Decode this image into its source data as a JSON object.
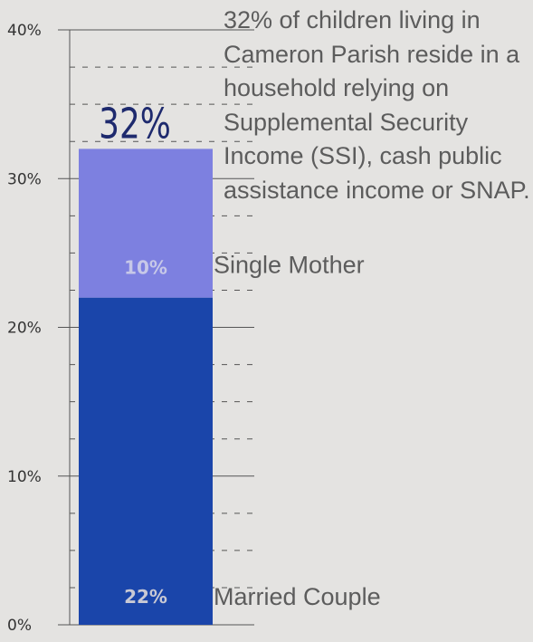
{
  "chart_data": {
    "type": "bar",
    "stacked": true,
    "categories": [
      ""
    ],
    "series": [
      {
        "name": "Married Couple",
        "values": [
          22
        ],
        "label": "22%",
        "color": "#1a45aa",
        "label_color": "#c9c9d4"
      },
      {
        "name": "Single Mother",
        "values": [
          10
        ],
        "label": "10%",
        "color": "#7d80e0",
        "label_color": "#c7c8e8"
      }
    ],
    "total_label": "32%",
    "ylim": [
      0,
      40
    ],
    "yticks": [
      {
        "value": 0,
        "label": "0%"
      },
      {
        "value": 10,
        "label": "10%"
      },
      {
        "value": 20,
        "label": "20%"
      },
      {
        "value": 30,
        "label": "30%"
      },
      {
        "value": 40,
        "label": "40%"
      }
    ],
    "minor_ticks": [
      2.5,
      5,
      7.5,
      12.5,
      15,
      17.5,
      22.5,
      25,
      27.5,
      32.5,
      35,
      37.5
    ],
    "grid": true,
    "annotation": "32% of children living in Cameron Parish reside in a household relying on Supplemental Security Income (SSI), cash public assistance income or SNAP.",
    "colors": {
      "background": "#e4e3e1",
      "axis": "#555555",
      "total": "#1e2a6e",
      "text": "#5c5c5c"
    }
  }
}
